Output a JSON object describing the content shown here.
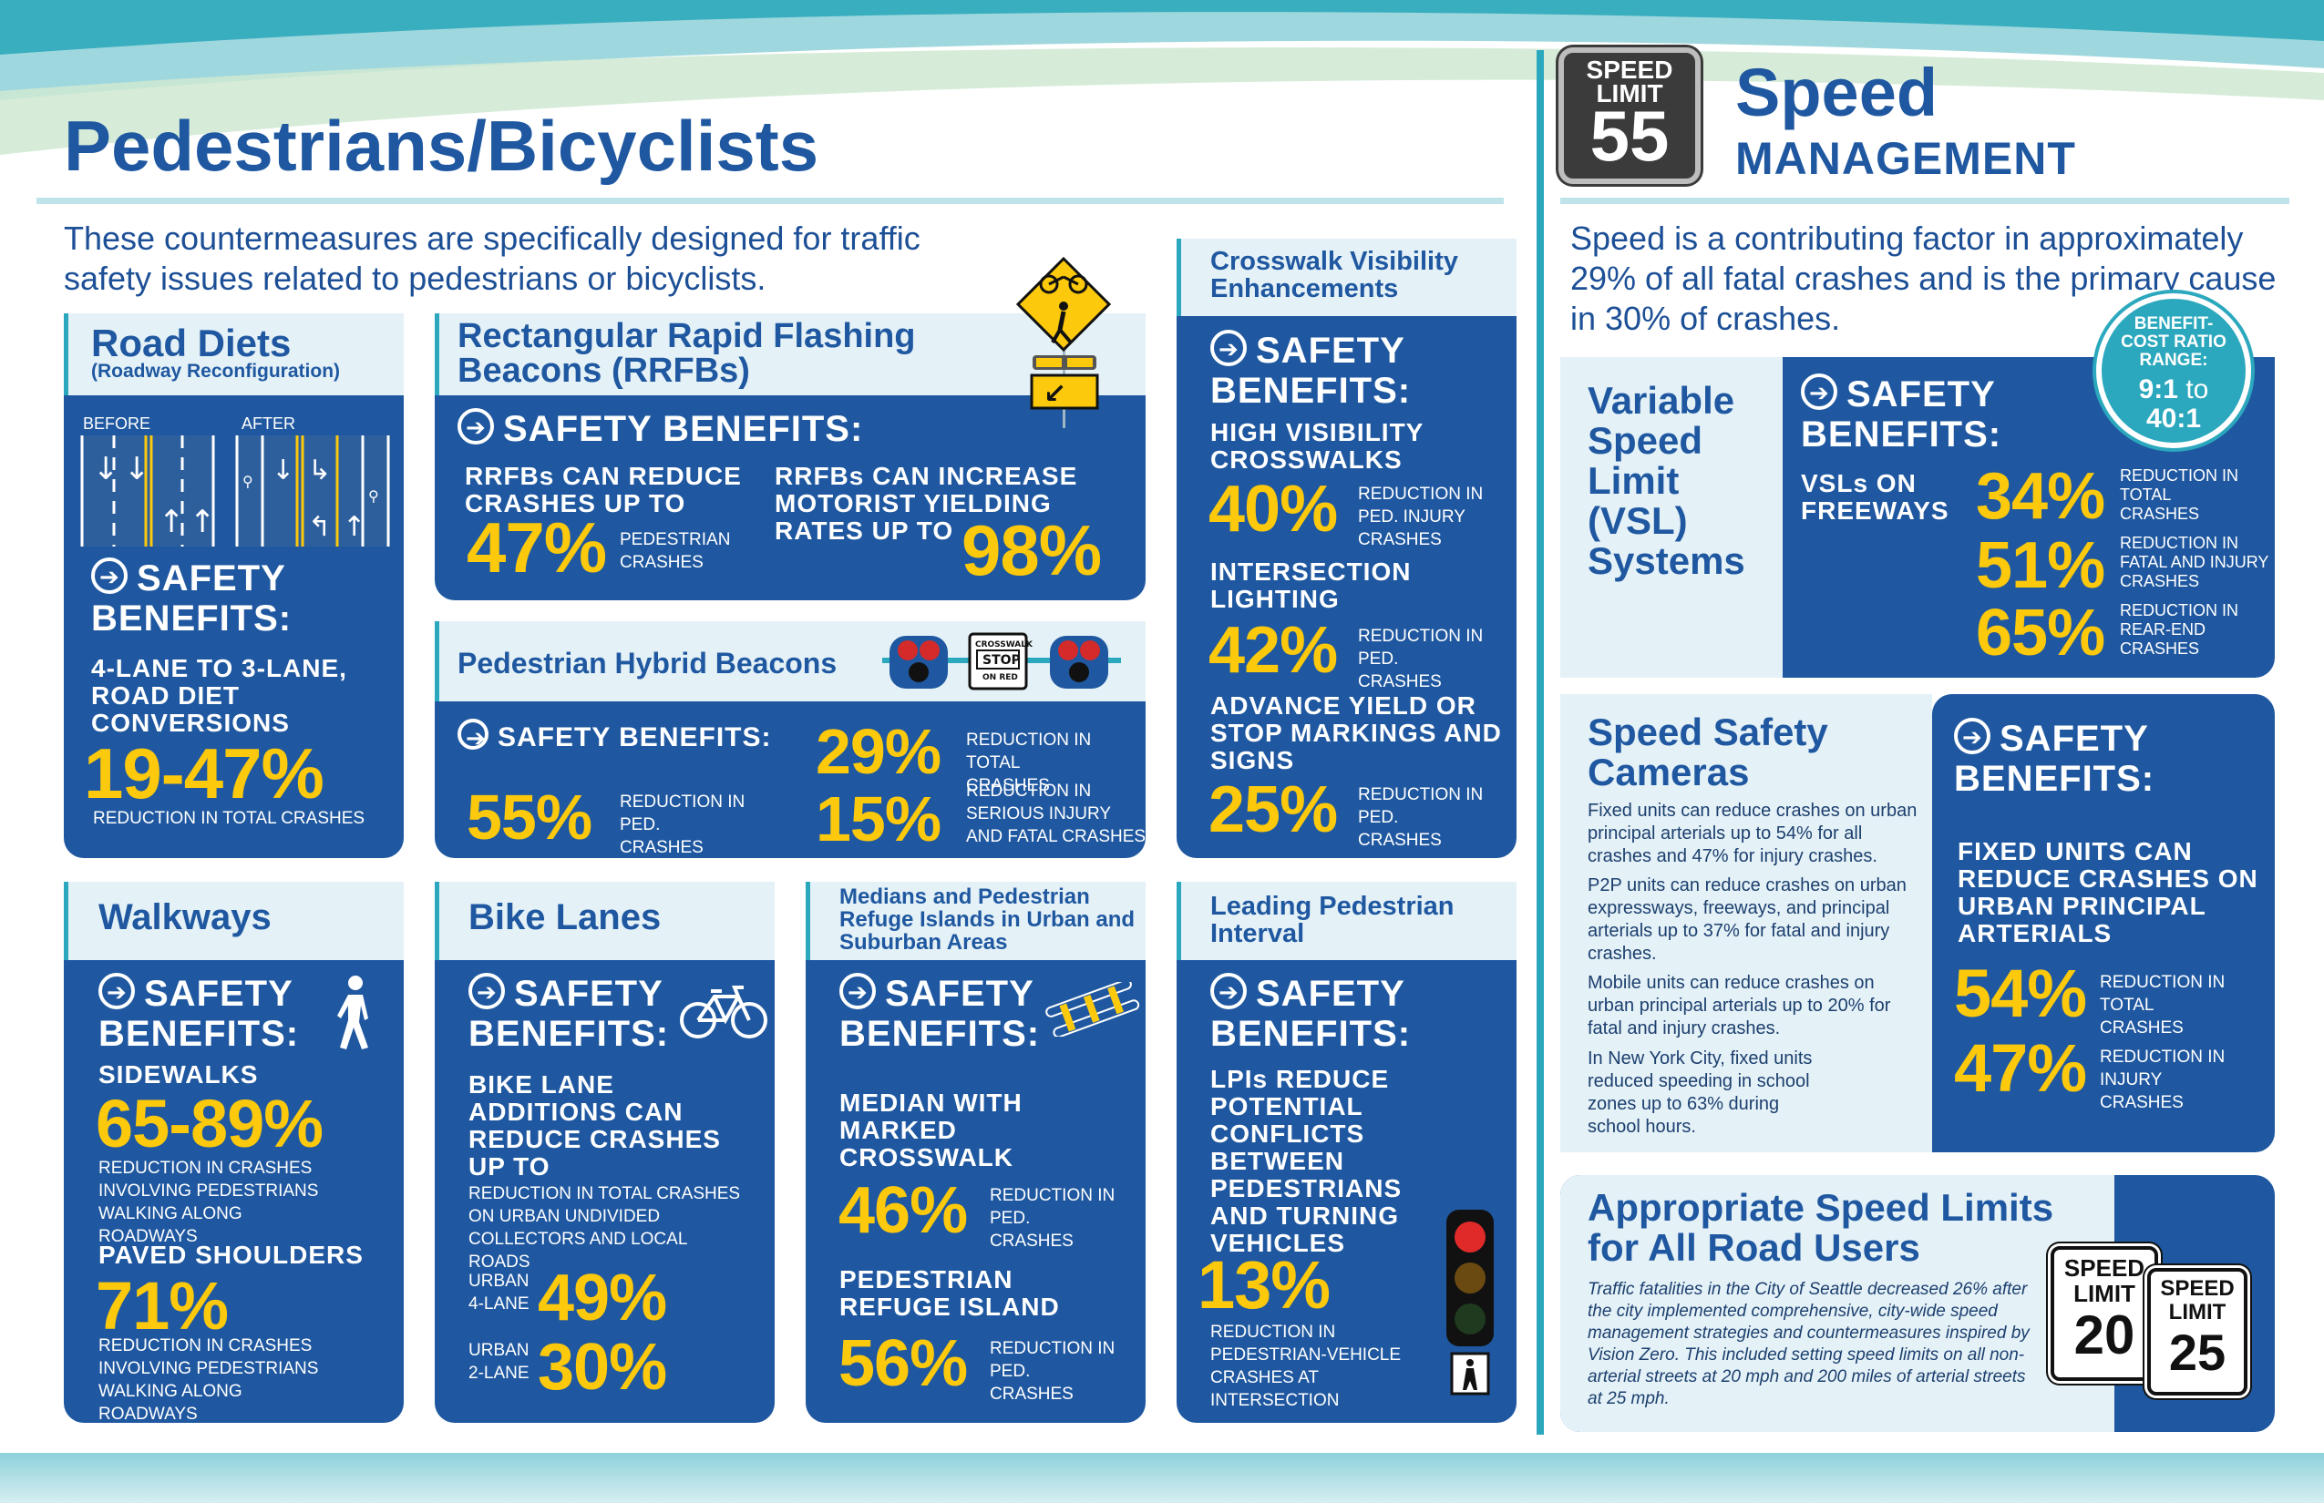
{
  "left": {
    "title": "Pedestrians/Bicyclists",
    "intro": "These countermeasures are specifically designed for traffic safety issues related to pedestrians or bicyclists."
  },
  "safety_label": "SAFETY BENEFITS:",
  "road_diets": {
    "title": "Road Diets",
    "subtitle": "(Roadway Reconfiguration)",
    "before": "BEFORE",
    "after": "AFTER",
    "caption": "4-LANE TO 3-LANE, ROAD DIET CONVERSIONS",
    "value": "19-47%",
    "note": "REDUCTION IN TOTAL CRASHES"
  },
  "rrfb": {
    "title": "Rectangular Rapid Flashing Beacons (RRFBs)",
    "cap1": "RRFBs CAN REDUCE CRASHES UP TO",
    "v1": "47%",
    "n1": "PEDESTRIAN CRASHES",
    "cap2": "RRFBs CAN INCREASE MOTORIST YIELDING RATES UP TO",
    "v2": "98%"
  },
  "phb": {
    "title": "Pedestrian Hybrid Beacons",
    "sign": "CROSSWALK STOP ON RED",
    "v1": "55%",
    "n1": "REDUCTION IN PED. CRASHES",
    "v2": "29%",
    "n2": "REDUCTION IN TOTAL CRASHES",
    "v3": "15%",
    "n3": "REDUCTION IN SERIOUS INJURY AND FATAL CRASHES"
  },
  "crosswalk": {
    "title": "Crosswalk Visibility Enhancements",
    "items": [
      {
        "cap": "HIGH VISIBILITY CROSSWALKS",
        "v": "40%",
        "n": "REDUCTION IN PED. INJURY CRASHES"
      },
      {
        "cap": "INTERSECTION LIGHTING",
        "v": "42%",
        "n": "REDUCTION IN PED. CRASHES"
      },
      {
        "cap": "ADVANCE YIELD OR STOP MARKINGS AND SIGNS",
        "v": "25%",
        "n": "REDUCTION IN PED. CRASHES"
      }
    ]
  },
  "walkways": {
    "title": "Walkways",
    "c1": "SIDEWALKS",
    "v1": "65-89%",
    "n1": "REDUCTION IN CRASHES INVOLVING PEDESTRIANS WALKING ALONG ROADWAYS",
    "c2": "PAVED SHOULDERS",
    "v2": "71%",
    "n2": "REDUCTION IN CRASHES INVOLVING PEDESTRIANS WALKING ALONG ROADWAYS"
  },
  "bike": {
    "title": "Bike Lanes",
    "cap": "BIKE LANE ADDITIONS CAN REDUCE CRASHES UP TO",
    "note": "REDUCTION IN TOTAL CRASHES ON URBAN UNDIVIDED COLLECTORS AND LOCAL ROADS",
    "l1": "URBAN 4-LANE",
    "v1": "49%",
    "l2": "URBAN 2-LANE",
    "v2": "30%"
  },
  "medians": {
    "title": "Medians and Pedestrian Refuge Islands in Urban and Suburban Areas",
    "c1": "MEDIAN WITH MARKED CROSSWALK",
    "v1": "46%",
    "n1": "REDUCTION IN PED. CRASHES",
    "c2": "PEDESTRIAN REFUGE ISLAND",
    "v2": "56%",
    "n2": "REDUCTION IN PED. CRASHES"
  },
  "lpi": {
    "title": "Leading Pedestrian Interval",
    "cap": "LPIs REDUCE POTENTIAL CONFLICTS BETWEEN PEDESTRIANS AND TURNING VEHICLES",
    "v": "13%",
    "n": "REDUCTION IN PEDESTRIAN-VEHICLE CRASHES AT INTERSECTION"
  },
  "right": {
    "sign_top": "SPEED LIMIT",
    "sign_num": "55",
    "title1": "Speed",
    "title2": "MANAGEMENT",
    "intro": "Speed is a contributing factor in approximately 29% of all fatal crashes and is the primary cause in 30% of crashes."
  },
  "vsl": {
    "title": "Variable Speed Limit (VSL) Systems",
    "badge_label": "BENEFIT-COST RATIO RANGE:",
    "badge_a": "9:1",
    "badge_to": "to",
    "badge_b": "40:1",
    "cap": "VSLs ON FREEWAYS",
    "items": [
      {
        "v": "34%",
        "n": "REDUCTION IN TOTAL CRASHES"
      },
      {
        "v": "51%",
        "n": "REDUCTION IN FATAL AND INJURY CRASHES"
      },
      {
        "v": "65%",
        "n": "REDUCTION IN REAR-END CRASHES"
      }
    ]
  },
  "cameras": {
    "title": "Speed Safety Cameras",
    "p1": "Fixed units can reduce crashes on urban principal arterials up to 54% for all crashes and 47% for injury crashes.",
    "p2": "P2P units can reduce crashes on urban expressways, freeways, and principal arterials up to 37% for fatal and injury crashes.",
    "p3": "Mobile units can reduce crashes on urban principal arterials up to 20% for fatal and injury crashes.",
    "p4": "In New York City, fixed units reduced speeding in school zones up to 63% during school hours.",
    "cap": "FIXED UNITS CAN REDUCE CRASHES ON URBAN PRINCIPAL ARTERIALS",
    "v1": "54%",
    "n1": "REDUCTION IN TOTAL CRASHES",
    "v2": "47%",
    "n2": "REDUCTION IN INJURY CRASHES"
  },
  "limits": {
    "title": "Appropriate Speed Limits for All Road Users",
    "text": "Traffic fatalities in the City of Seattle decreased 26% after the city implemented comprehensive, city-wide speed management strategies and countermeasures inspired by Vision Zero. This included setting speed limits on all non-arterial streets at 20 mph and 200 miles of arterial streets at 25 mph.",
    "s1a": "SPEED",
    "s1b": "LIMIT",
    "s1n": "20",
    "s2a": "SPEED",
    "s2b": "LIMIT",
    "s2n": "25"
  },
  "colors": {
    "navy": "#1f58a0",
    "yellow": "#fcc90c",
    "teal": "#2ba8bd",
    "light": "#e4f1f7"
  }
}
